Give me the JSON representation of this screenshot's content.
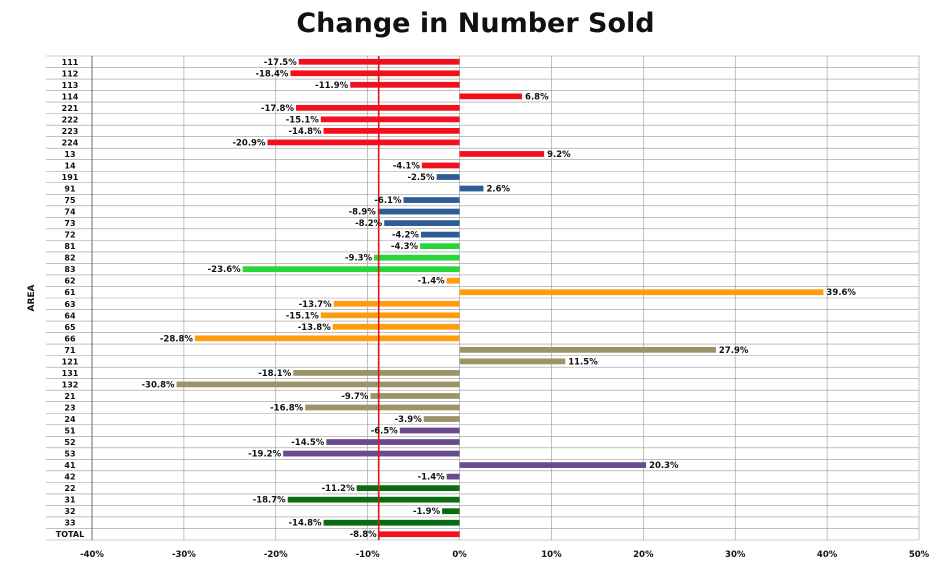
{
  "chart_data": {
    "type": "bar",
    "orientation": "horizontal",
    "title": "Change in Number Sold",
    "ylabel": "AREA",
    "xlabel": "",
    "xlim": [
      -40,
      50
    ],
    "xticks": [
      -40,
      -30,
      -20,
      -10,
      0,
      10,
      20,
      30,
      40,
      50
    ],
    "xtick_labels": [
      "-40%",
      "-30%",
      "-20%",
      "-10%",
      "0%",
      "10%",
      "20%",
      "30%",
      "40%",
      "50%"
    ],
    "grid": true,
    "reference_line": {
      "value": -8.8,
      "color": "#e8101a"
    },
    "colors": {
      "red": "#f2101c",
      "blue": "#2e5d94",
      "green": "#29d63a",
      "orange": "#ff9b0f",
      "khaki": "#9c9466",
      "purple": "#6a4a8c",
      "darkgreen": "#0a6b12"
    },
    "bars": [
      {
        "category": "111",
        "value": -17.5,
        "label": "-17.5%",
        "color": "red"
      },
      {
        "category": "112",
        "value": -18.4,
        "label": "-18.4%",
        "color": "red"
      },
      {
        "category": "113",
        "value": -11.9,
        "label": "-11.9%",
        "color": "red"
      },
      {
        "category": "114",
        "value": 6.8,
        "label": "6.8%",
        "color": "red"
      },
      {
        "category": "221",
        "value": -17.8,
        "label": "-17.8%",
        "color": "red"
      },
      {
        "category": "222",
        "value": -15.1,
        "label": "-15.1%",
        "color": "red"
      },
      {
        "category": "223",
        "value": -14.8,
        "label": "-14.8%",
        "color": "red"
      },
      {
        "category": "224",
        "value": -20.9,
        "label": "-20.9%",
        "color": "red"
      },
      {
        "category": "13",
        "value": 9.2,
        "label": "9.2%",
        "color": "red"
      },
      {
        "category": "14",
        "value": -4.1,
        "label": "-4.1%",
        "color": "red"
      },
      {
        "category": "191",
        "value": -2.5,
        "label": "-2.5%",
        "color": "blue"
      },
      {
        "category": "91",
        "value": 2.6,
        "label": "2.6%",
        "color": "blue"
      },
      {
        "category": "75",
        "value": -6.1,
        "label": "-6.1%",
        "color": "blue"
      },
      {
        "category": "74",
        "value": -8.9,
        "label": "-8.9%",
        "color": "blue"
      },
      {
        "category": "73",
        "value": -8.2,
        "label": "-8.2%",
        "color": "blue"
      },
      {
        "category": "72",
        "value": -4.2,
        "label": "-4.2%",
        "color": "blue"
      },
      {
        "category": "81",
        "value": -4.3,
        "label": "-4.3%",
        "color": "green"
      },
      {
        "category": "82",
        "value": -9.3,
        "label": "-9.3%",
        "color": "green"
      },
      {
        "category": "83",
        "value": -23.6,
        "label": "-23.6%",
        "color": "green"
      },
      {
        "category": "62",
        "value": -1.4,
        "label": "-1.4%",
        "color": "orange"
      },
      {
        "category": "61",
        "value": 39.6,
        "label": "39.6%",
        "color": "orange"
      },
      {
        "category": "63",
        "value": -13.7,
        "label": "-13.7%",
        "color": "orange"
      },
      {
        "category": "64",
        "value": -15.1,
        "label": "-15.1%",
        "color": "orange"
      },
      {
        "category": "65",
        "value": -13.8,
        "label": "-13.8%",
        "color": "orange"
      },
      {
        "category": "66",
        "value": -28.8,
        "label": "-28.8%",
        "color": "orange"
      },
      {
        "category": "71",
        "value": 27.9,
        "label": "27.9%",
        "color": "khaki"
      },
      {
        "category": "121",
        "value": 11.5,
        "label": "11.5%",
        "color": "khaki"
      },
      {
        "category": "131",
        "value": -18.1,
        "label": "-18.1%",
        "color": "khaki"
      },
      {
        "category": "132",
        "value": -30.8,
        "label": "-30.8%",
        "color": "khaki"
      },
      {
        "category": "21",
        "value": -9.7,
        "label": "-9.7%",
        "color": "khaki"
      },
      {
        "category": "23",
        "value": -16.8,
        "label": "-16.8%",
        "color": "khaki"
      },
      {
        "category": "24",
        "value": -3.9,
        "label": "-3.9%",
        "color": "khaki"
      },
      {
        "category": "51",
        "value": -6.5,
        "label": "-6.5%",
        "color": "purple"
      },
      {
        "category": "52",
        "value": -14.5,
        "label": "-14.5%",
        "color": "purple"
      },
      {
        "category": "53",
        "value": -19.2,
        "label": "-19.2%",
        "color": "purple"
      },
      {
        "category": "41",
        "value": 20.3,
        "label": "20.3%",
        "color": "purple"
      },
      {
        "category": "42",
        "value": -1.4,
        "label": "-1.4%",
        "color": "purple"
      },
      {
        "category": "22",
        "value": -11.2,
        "label": "-11.2%",
        "color": "darkgreen"
      },
      {
        "category": "31",
        "value": -18.7,
        "label": "-18.7%",
        "color": "darkgreen"
      },
      {
        "category": "32",
        "value": -1.9,
        "label": "-1.9%",
        "color": "darkgreen"
      },
      {
        "category": "33",
        "value": -14.8,
        "label": "-14.8%",
        "color": "darkgreen"
      },
      {
        "category": "TOTAL",
        "value": -8.8,
        "label": "-8.8%",
        "color": "red"
      }
    ]
  }
}
